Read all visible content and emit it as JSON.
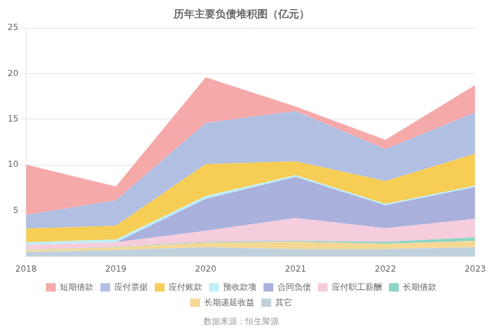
{
  "chart_data": {
    "type": "area",
    "title": "历年主要负债堆积图（亿元）",
    "x": [
      2018,
      2019,
      2020,
      2021,
      2022,
      2023
    ],
    "series": [
      {
        "name": "其它",
        "color": "#b8ccd8",
        "values": [
          0.5,
          0.7,
          1.0,
          0.8,
          0.8,
          1.0
        ]
      },
      {
        "name": "长期递延收益",
        "color": "#f5d48a",
        "values": [
          0.2,
          0.3,
          0.5,
          0.8,
          0.6,
          0.7
        ]
      },
      {
        "name": "长期借款",
        "color": "#7ecfc0",
        "values": [
          0.05,
          0.05,
          0.1,
          0.1,
          0.2,
          0.4
        ]
      },
      {
        "name": "应付职工薪酬",
        "color": "#f5c8d8",
        "values": [
          0.5,
          0.5,
          1.2,
          2.5,
          1.5,
          2.0
        ]
      },
      {
        "name": "合同负债",
        "color": "#a0a8d8",
        "values": [
          0.0,
          0.0,
          3.5,
          4.5,
          2.5,
          3.5
        ]
      },
      {
        "name": "预收款项",
        "color": "#b8ecf8",
        "values": [
          0.3,
          0.3,
          0.3,
          0.2,
          0.15,
          0.15
        ]
      },
      {
        "name": "应付账款",
        "color": "#f5c842",
        "values": [
          1.5,
          1.5,
          3.5,
          1.5,
          2.5,
          3.5
        ]
      },
      {
        "name": "应付票据",
        "color": "#a8b8e0",
        "values": [
          1.5,
          2.8,
          4.5,
          5.5,
          3.5,
          4.5
        ]
      },
      {
        "name": "短期借款",
        "color": "#f5a0a0",
        "values": [
          5.5,
          1.5,
          5.0,
          0.5,
          1.0,
          3.0
        ]
      }
    ],
    "xlim": [
      2018,
      2023
    ],
    "xticks": [
      2018,
      2019,
      2020,
      2021,
      2022,
      2023
    ],
    "ylim": [
      0,
      25
    ],
    "yticks": [
      5,
      10,
      15,
      20,
      25
    ],
    "grid": true,
    "stacked": true,
    "legend": "bottom",
    "annotations": [
      "数据来源：恒生聚源"
    ]
  }
}
